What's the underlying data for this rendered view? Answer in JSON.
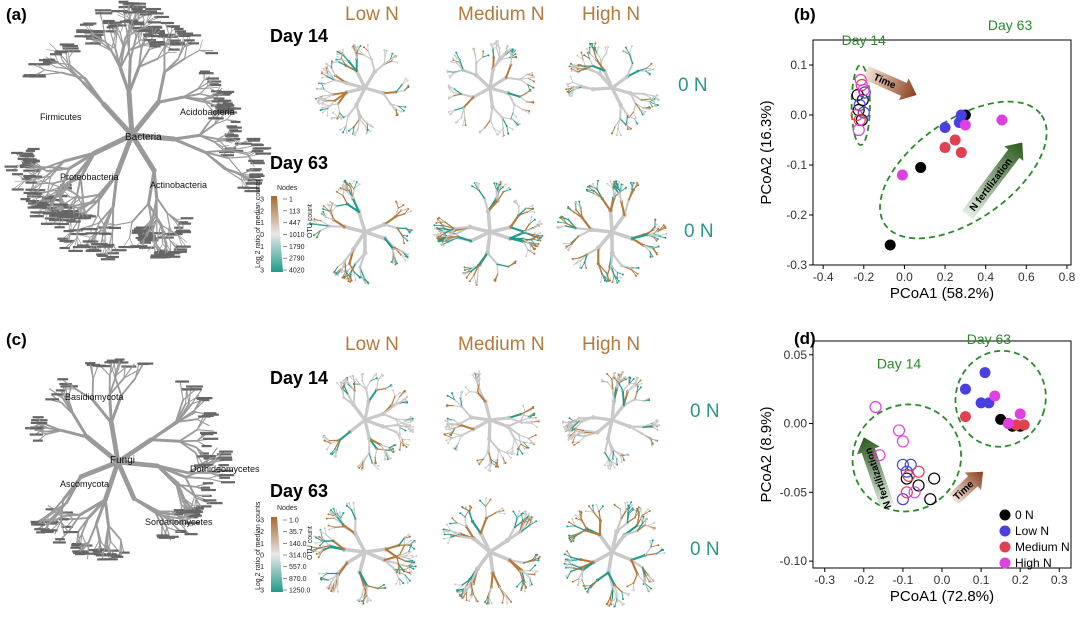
{
  "panels": {
    "a": {
      "label": "(a)",
      "root_label": "Bacteria",
      "sub_labels": [
        "Proteobacteria",
        "Actinobacteria",
        "Firmicutes",
        "Acidobacteria"
      ],
      "col_heads": [
        "Low N",
        "Medium N",
        "High N"
      ],
      "days": [
        "Day 14",
        "Day 63"
      ],
      "ref": "0 N",
      "legend": {
        "nodes_title": "Nodes",
        "ratio_title": "Log 2 ratio of median counts",
        "otu_title": "OTU count",
        "ratio_ticks": [
          "-3",
          "-2",
          "-1",
          "0",
          "1",
          "2",
          "3"
        ],
        "otu_ticks": [
          "1",
          "113",
          "447",
          "1010",
          "1790",
          "2790",
          "4020"
        ]
      }
    },
    "c": {
      "label": "(c)",
      "root_label": "Fungi",
      "sub_labels": [
        "Ascomycota",
        "Basidiomycota",
        "Sordariomycetes",
        "Dothideomycetes"
      ],
      "col_heads": [
        "Low N",
        "Medium N",
        "High N"
      ],
      "days": [
        "Day 14",
        "Day 63"
      ],
      "ref": "0 N",
      "legend": {
        "nodes_title": "Nodes",
        "ratio_title": "Log 2 ratio of median counts",
        "otu_title": "OTU count",
        "ratio_ticks": [
          "-3",
          "-2",
          "-1",
          "0",
          "1",
          "2",
          "3"
        ],
        "otu_ticks": [
          "1.0",
          "35.7",
          "140.0",
          "314.0",
          "557.0",
          "870.0",
          "1250.0"
        ]
      }
    }
  },
  "colors": {
    "brown": "#b5793b",
    "teal": "#1e9a8c",
    "gray": "#c9c9c9",
    "green_dash": "#2a8a2a",
    "black": "#000000",
    "blue": "#4a3fe0",
    "red": "#e0404f",
    "magenta": "#e040e0"
  },
  "chart_data": [
    {
      "type": "scatter",
      "panel": "(b)",
      "xlabel": "PCoA1 (58.2%)",
      "ylabel": "PCoA2 (16.3%)",
      "xlim": [
        -0.45,
        0.82
      ],
      "ylim": [
        -0.3,
        0.15
      ],
      "xticks": [
        -0.4,
        -0.2,
        0.0,
        0.2,
        0.4,
        0.6,
        0.8
      ],
      "yticks": [
        -0.3,
        -0.2,
        -0.1,
        0.0,
        0.1
      ],
      "xtick_labels": [
        "-0.4",
        "-0.2",
        "0.0",
        "0.2",
        "0.4",
        "0.6",
        "0.8"
      ],
      "ytick_labels": [
        "-0.3",
        "-0.2",
        "-0.1",
        "0.0",
        "0.1"
      ],
      "annotations": [
        "Day 14",
        "Day 63",
        "Time",
        "N fertilization"
      ],
      "ellipses": [
        {
          "name": "Day 14",
          "cx": -0.215,
          "cy": 0.02,
          "rx": 0.045,
          "ry": 0.08,
          "angle": 0
        },
        {
          "name": "Day 63",
          "cx": 0.29,
          "cy": -0.11,
          "rx": 0.47,
          "ry": 0.1,
          "angle": 35
        }
      ],
      "arrows": [
        {
          "label": "Time",
          "from": [
            -0.19,
            0.085
          ],
          "to": [
            0.06,
            0.04
          ]
        },
        {
          "label": "N fertilization",
          "from": [
            0.31,
            -0.2
          ],
          "to": [
            0.58,
            -0.055
          ]
        }
      ],
      "series": [
        {
          "name": "0 N",
          "day14": [
            [
              -0.225,
              0.01
            ],
            [
              -0.205,
              0.03
            ],
            [
              -0.21,
              -0.01
            ],
            [
              -0.23,
              0.04
            ]
          ],
          "day63": [
            [
              0.08,
              -0.105
            ],
            [
              -0.07,
              -0.26
            ],
            [
              0.3,
              0.0
            ]
          ]
        },
        {
          "name": "Low N",
          "day14": [
            [
              -0.195,
              0.045
            ],
            [
              -0.22,
              0.02
            ],
            [
              -0.2,
              0.005
            ]
          ],
          "day63": [
            [
              0.2,
              -0.025
            ],
            [
              0.27,
              -0.015
            ],
            [
              0.28,
              0.0
            ]
          ]
        },
        {
          "name": "Medium N",
          "day14": [
            [
              -0.22,
              -0.01
            ],
            [
              -0.21,
              0.06
            ],
            [
              -0.235,
              0.0
            ]
          ],
          "day63": [
            [
              0.25,
              -0.05
            ],
            [
              0.2,
              -0.065
            ],
            [
              0.28,
              -0.075
            ]
          ]
        },
        {
          "name": "High N",
          "day14": [
            [
              -0.215,
              0.07
            ],
            [
              -0.225,
              -0.03
            ],
            [
              -0.2,
              0.05
            ]
          ],
          "day63": [
            [
              0.48,
              -0.01
            ],
            [
              0.3,
              -0.02
            ],
            [
              -0.01,
              -0.12
            ]
          ]
        }
      ]
    },
    {
      "type": "scatter",
      "panel": "(d)",
      "xlabel": "PCoA1 (72.8%)",
      "ylabel": "PCoA2 (8.9%)",
      "xlim": [
        -0.33,
        0.33
      ],
      "ylim": [
        -0.105,
        0.06
      ],
      "xticks": [
        -0.3,
        -0.2,
        -0.1,
        0.0,
        0.1,
        0.2,
        0.3
      ],
      "yticks": [
        -0.1,
        -0.05,
        0.0,
        0.05
      ],
      "xtick_labels": [
        "-0.3",
        "-0.2",
        "-0.1",
        "0.0",
        "0.1",
        "0.2",
        "0.3"
      ],
      "ytick_labels": [
        "-0.10",
        "-0.05",
        "0.00",
        "0.05"
      ],
      "annotations": [
        "Day 14",
        "Day 63",
        "Time",
        "N fertilization"
      ],
      "ellipses": [
        {
          "name": "Day 14",
          "cx": -0.09,
          "cy": -0.025,
          "rx": 0.135,
          "ry": 0.04,
          "angle": -55
        },
        {
          "name": "Day 63",
          "cx": 0.15,
          "cy": 0.018,
          "rx": 0.115,
          "ry": 0.035,
          "angle": -15
        }
      ],
      "arrows": [
        {
          "label": "Time",
          "from": [
            0.03,
            -0.055
          ],
          "to": [
            0.105,
            -0.035
          ]
        },
        {
          "label": "N fertilization",
          "from": [
            -0.14,
            -0.06
          ],
          "to": [
            -0.2,
            -0.01
          ]
        }
      ],
      "series": [
        {
          "name": "0 N",
          "day14": [
            [
              -0.02,
              -0.04
            ],
            [
              -0.06,
              -0.045
            ],
            [
              -0.09,
              -0.04
            ],
            [
              -0.03,
              -0.055
            ]
          ],
          "day63": [
            [
              0.15,
              0.003
            ],
            [
              0.17,
              0.0
            ],
            [
              0.18,
              -0.002
            ],
            [
              0.2,
              -0.002
            ]
          ]
        },
        {
          "name": "Low N",
          "day14": [
            [
              -0.1,
              -0.03
            ],
            [
              -0.08,
              -0.03
            ],
            [
              -0.09,
              -0.035
            ],
            [
              -0.1,
              -0.055
            ]
          ],
          "day63": [
            [
              0.06,
              0.025
            ],
            [
              0.11,
              0.037
            ],
            [
              0.12,
              0.015
            ],
            [
              0.1,
              0.015
            ]
          ]
        },
        {
          "name": "Medium N",
          "day14": [
            [
              -0.06,
              -0.035
            ],
            [
              -0.085,
              -0.038
            ],
            [
              -0.09,
              -0.05
            ]
          ],
          "day63": [
            [
              0.06,
              0.005
            ],
            [
              0.21,
              -0.001
            ],
            [
              0.19,
              -0.001
            ]
          ]
        },
        {
          "name": "High N",
          "day14": [
            [
              -0.17,
              0.012
            ],
            [
              -0.1,
              -0.013
            ],
            [
              -0.11,
              -0.005
            ],
            [
              -0.16,
              -0.023
            ],
            [
              -0.07,
              -0.05
            ]
          ],
          "day63": [
            [
              0.135,
              0.02
            ],
            [
              0.2,
              0.007
            ],
            [
              0.17,
              0.0
            ]
          ]
        }
      ],
      "legend": [
        {
          "name": "0 N",
          "color": "#000000"
        },
        {
          "name": "Low N",
          "color": "#4a3fe0"
        },
        {
          "name": "Medium N",
          "color": "#e0404f"
        },
        {
          "name": "High N",
          "color": "#e040e0"
        }
      ]
    }
  ]
}
